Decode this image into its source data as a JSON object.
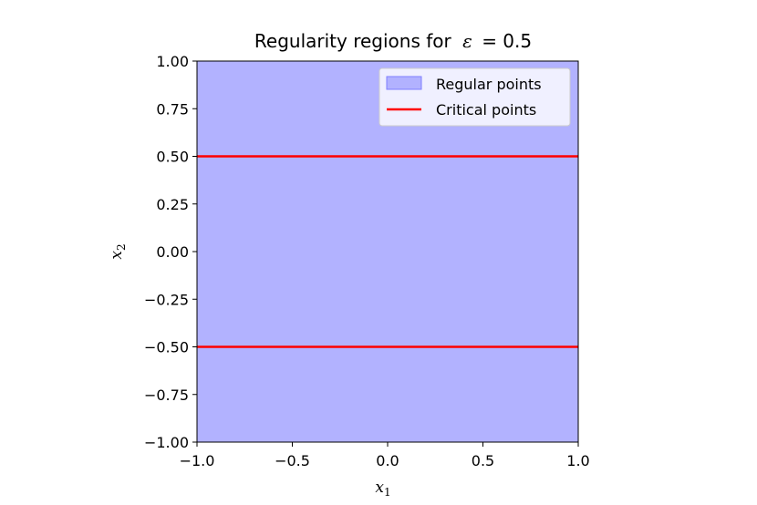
{
  "chart_data": {
    "type": "area",
    "title": "Regularity regions for ε = 0.5",
    "title_prefix": "Regularity regions for",
    "title_symbol": "ε",
    "title_suffix": "= 0.5",
    "epsilon": 0.5,
    "xlabel": "x",
    "xlabel_sub": "1",
    "ylabel": "x",
    "ylabel_sub": "2",
    "xlim": [
      -1.0,
      1.0
    ],
    "ylim": [
      -1.0,
      1.0
    ],
    "x_ticks": [
      -1.0,
      -0.5,
      0.0,
      0.5,
      1.0
    ],
    "x_tick_labels": [
      "−1.0",
      "−0.5",
      "0.0",
      "0.5",
      "1.0"
    ],
    "y_ticks": [
      1.0,
      0.75,
      0.5,
      0.25,
      0.0,
      -0.25,
      -0.5,
      -0.75,
      -1.0
    ],
    "y_tick_labels": [
      "1.00",
      "0.75",
      "0.50",
      "0.25",
      "0.00",
      "−0.25",
      "−0.50",
      "−0.75",
      "−1.00"
    ],
    "grid": false,
    "legend_position": "top-right",
    "series": [
      {
        "name": "Regular points",
        "kind": "filled-region",
        "color": "#b2b2ff",
        "edge_color": "#7f7fff",
        "x_range": [
          -1.0,
          1.0
        ],
        "y_range": [
          -1.0,
          1.0
        ]
      },
      {
        "name": "Critical points",
        "kind": "horizontal-lines",
        "color": "#ff0000",
        "y_values": [
          0.5,
          -0.5
        ]
      }
    ]
  }
}
